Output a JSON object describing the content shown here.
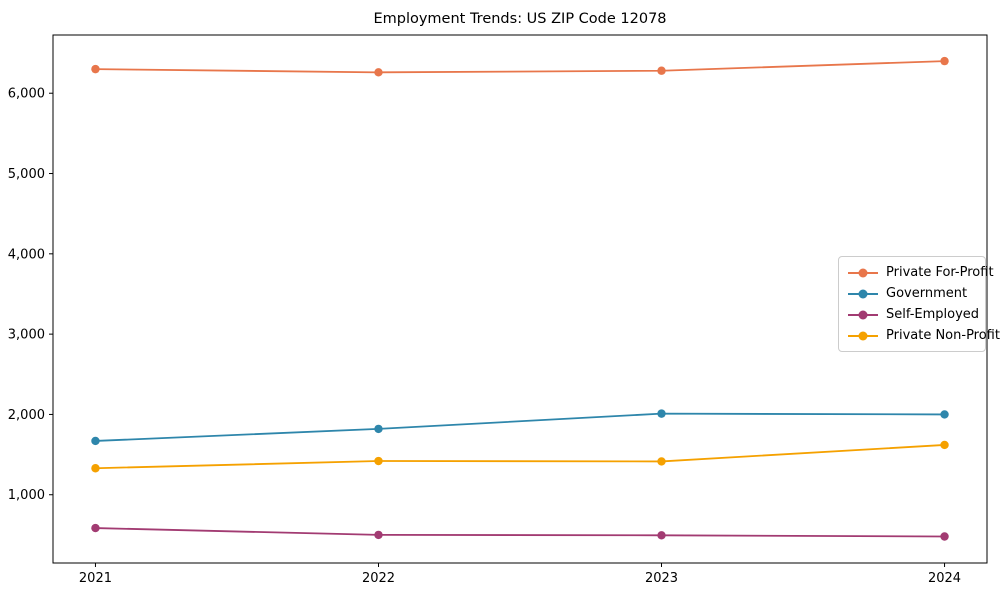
{
  "chart_data": {
    "type": "line",
    "title": "Employment Trends: US ZIP Code 12078",
    "x": [
      2021,
      2022,
      2023,
      2024
    ],
    "xtick_labels": [
      "2021",
      "2022",
      "2023",
      "2024"
    ],
    "yticks": [
      1000,
      2000,
      3000,
      4000,
      5000,
      6000
    ],
    "ytick_labels": [
      "1,000",
      "2,000",
      "3,000",
      "4,000",
      "5,000",
      "6,000"
    ],
    "xlim": [
      2020.85,
      2024.15
    ],
    "ylim": [
      150,
      6725
    ],
    "grid": false,
    "legend_position": "center-right",
    "series": [
      {
        "name": "Private For-Profit",
        "color": "#E8764B",
        "values": [
          6300,
          6260,
          6280,
          6400
        ]
      },
      {
        "name": "Government",
        "color": "#2E86AB",
        "values": [
          1670,
          1820,
          2010,
          2000
        ]
      },
      {
        "name": "Self-Employed",
        "color": "#A23B72",
        "values": [
          585,
          500,
          495,
          480
        ]
      },
      {
        "name": "Private Non-Profit",
        "color": "#F5A100",
        "values": [
          1330,
          1420,
          1415,
          1620
        ]
      }
    ]
  }
}
